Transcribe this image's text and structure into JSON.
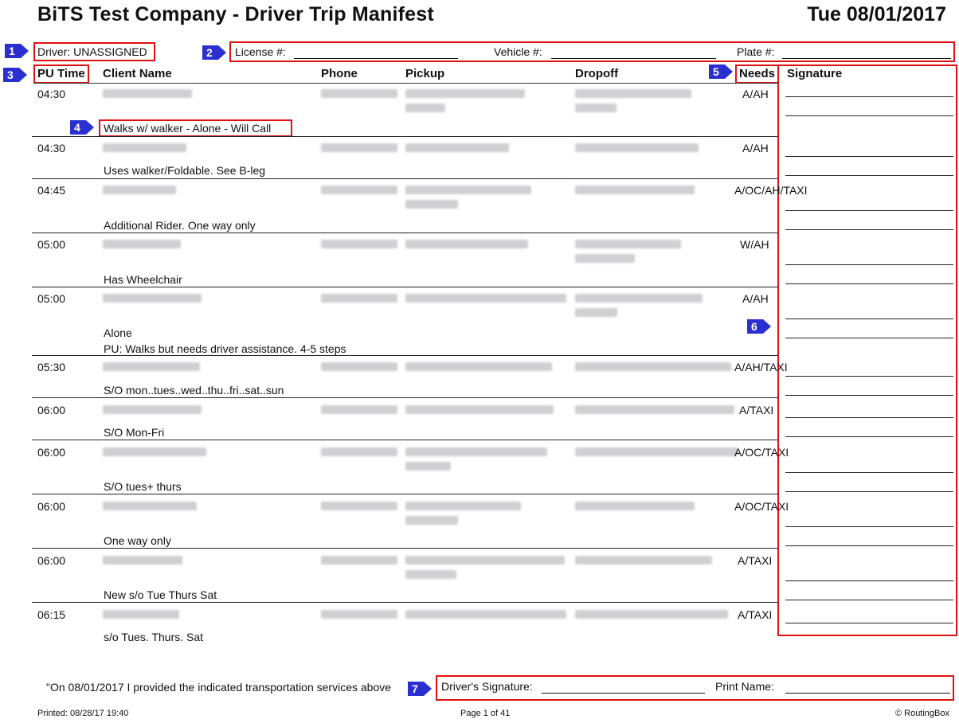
{
  "header": {
    "title": "BiTS Test Company - Driver Trip Manifest",
    "date": "Tue 08/01/2017"
  },
  "driver_info": {
    "driver": "Driver: UNASSIGNED",
    "license_label": "License #:",
    "vehicle_label": "Vehicle #:",
    "plate_label": "Plate #:"
  },
  "columns": {
    "pu_time": "PU Time",
    "client_name": "Client Name",
    "phone": "Phone",
    "pickup": "Pickup",
    "dropoff": "Dropoff",
    "needs": "Needs",
    "signature": "Signature"
  },
  "trips": [
    {
      "time": "04:30",
      "needs": "A/AH",
      "note": "Walks w/ walker - Alone - Will Call",
      "note2": ""
    },
    {
      "time": "04:30",
      "needs": "A/AH",
      "note": "Uses walker/Foldable. See B-leg",
      "note2": ""
    },
    {
      "time": "04:45",
      "needs": "A/OC/AH/TAXI",
      "note": "Additional Rider. One way only",
      "note2": ""
    },
    {
      "time": "05:00",
      "needs": "W/AH",
      "note": "Has Wheelchair",
      "note2": ""
    },
    {
      "time": "05:00",
      "needs": "A/AH",
      "note": "Alone",
      "note2": "PU: Walks but needs driver assistance. 4-5 steps"
    },
    {
      "time": "05:30",
      "needs": "A/AH/TAXI",
      "note": "S/O mon..tues..wed..thu..fri..sat..sun",
      "note2": ""
    },
    {
      "time": "06:00",
      "needs": "A/TAXI",
      "note": "S/O Mon-Fri",
      "note2": ""
    },
    {
      "time": "06:00",
      "needs": "A/OC/TAXI",
      "note": "S/O tues+ thurs",
      "note2": ""
    },
    {
      "time": "06:00",
      "needs": "A/OC/TAXI",
      "note": "One way only",
      "note2": ""
    },
    {
      "time": "06:00",
      "needs": "A/TAXI",
      "note": "New s/o Tue Thurs Sat",
      "note2": ""
    },
    {
      "time": "06:15",
      "needs": "A/TAXI",
      "note": "s/o Tues. Thurs. Sat",
      "note2": ""
    }
  ],
  "footer": {
    "statement": "\"On 08/01/2017 I provided the indicated transportation services above",
    "driver_signature_label": "Driver's Signature:",
    "print_name_label": "Print Name:",
    "printed": "Printed: 08/28/17 19:40",
    "page": "Page 1 of 41",
    "copyright": "© RoutingBox"
  },
  "callouts": [
    "1",
    "2",
    "3",
    "4",
    "5",
    "6",
    "7"
  ],
  "colors": {
    "callout_blue": "#2b2fd0",
    "highlight_red": "#e01010",
    "blurred_text": "#c8c8cc"
  }
}
